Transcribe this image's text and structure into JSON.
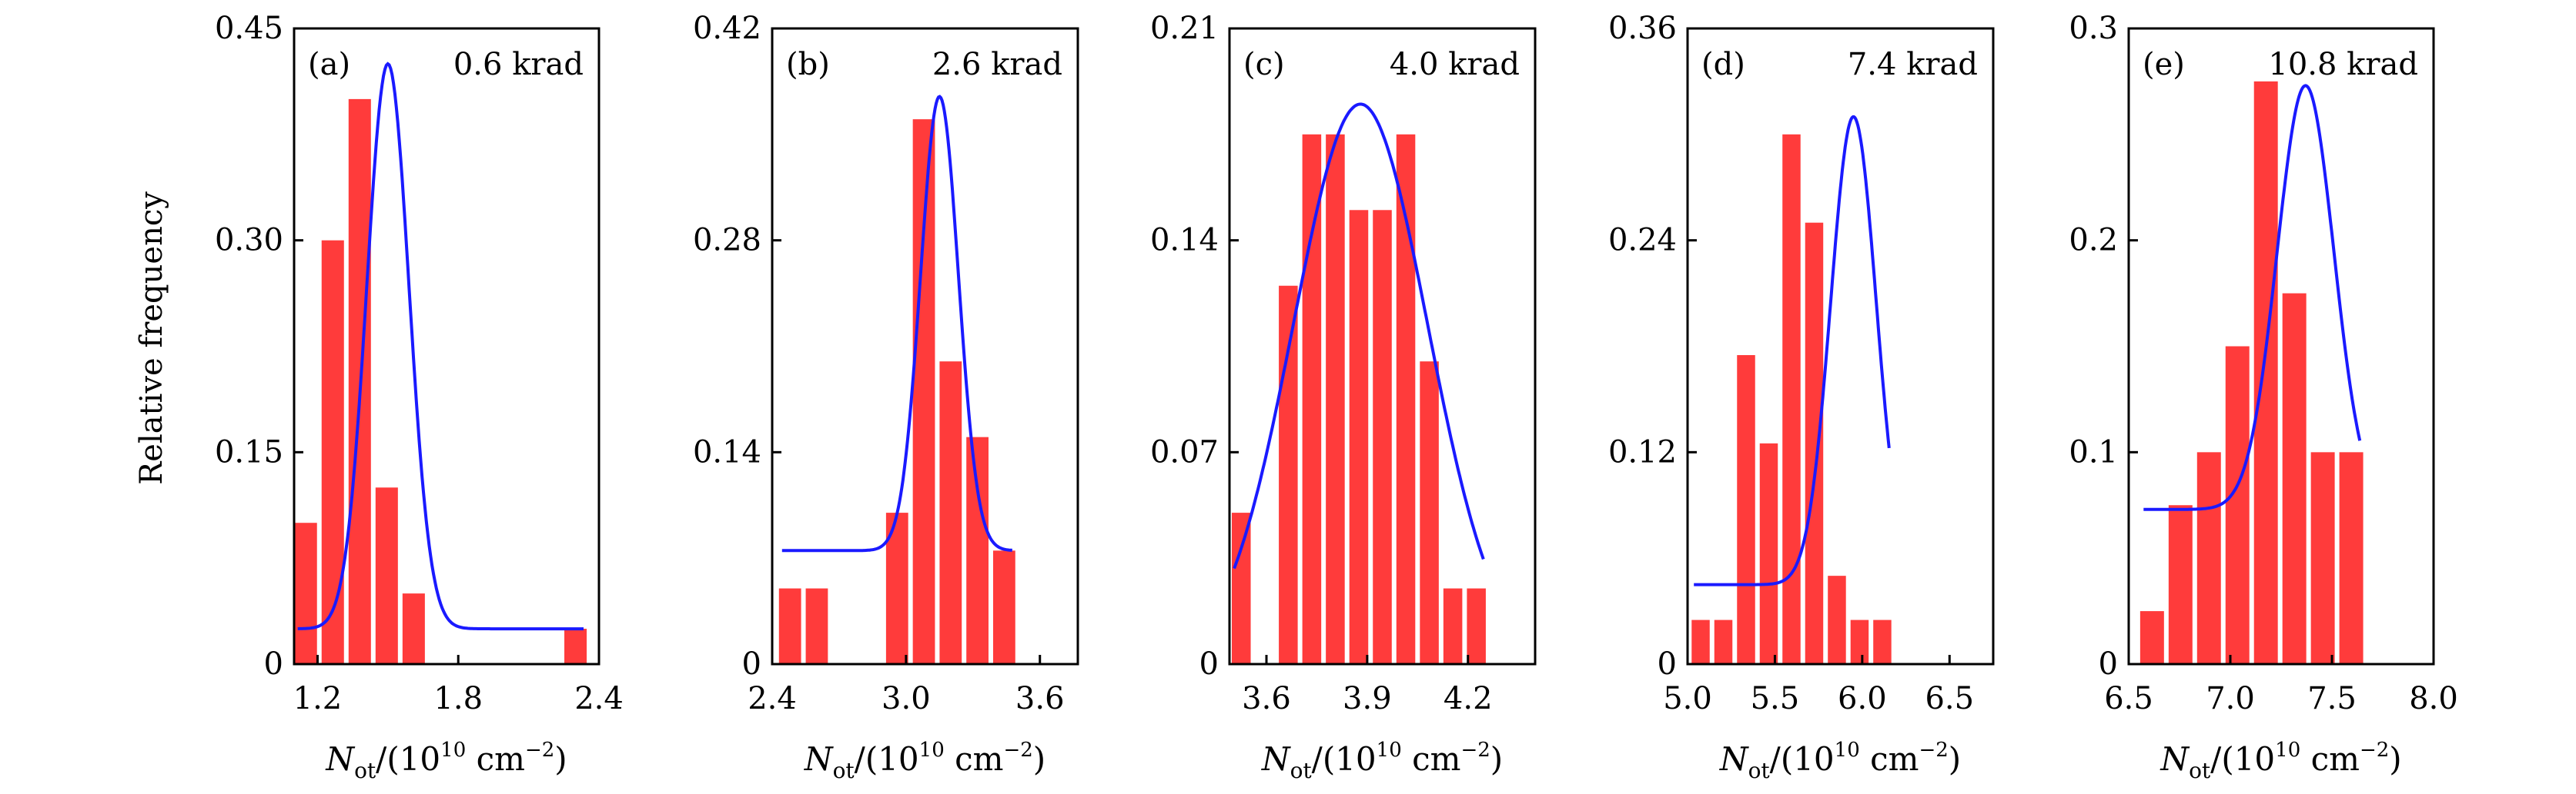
{
  "figure": {
    "y_axis_label": "Relative frequency",
    "x_axis_label": {
      "var": "N",
      "sub": "ot",
      "pre": "/(10",
      "exp10": "10",
      "unit": " cm",
      "exp_unit": "−2",
      "post": ")"
    }
  },
  "chart_data": [
    {
      "type": "bar",
      "panel": "(a)",
      "dose": "0.6 krad",
      "xlim": [
        1.1,
        2.4
      ],
      "ylim": [
        0,
        0.45
      ],
      "xticks": [
        1.2,
        1.8,
        2.4
      ],
      "xtick_labels": [
        "1.2",
        "1.8",
        "2.4"
      ],
      "yticks": [
        0,
        0.15,
        0.3,
        0.45
      ],
      "ytick_labels": [
        "0",
        "0.15",
        "0.30",
        "0.45"
      ],
      "bin_width": 0.115,
      "bins": [
        1.15,
        1.265,
        1.38,
        1.495,
        1.61,
        1.725,
        1.84,
        1.955,
        2.07,
        2.185,
        2.3
      ],
      "values": [
        0.1,
        0.3,
        0.4,
        0.125,
        0.05,
        0,
        0,
        0,
        0,
        0,
        0.025
      ],
      "fit": {
        "mu": 1.5,
        "sigma": 0.09,
        "amp": 0.4,
        "base": 0.025
      }
    },
    {
      "type": "bar",
      "panel": "(b)",
      "dose": "2.6 krad",
      "xlim": [
        2.4,
        3.77
      ],
      "ylim": [
        0,
        0.42
      ],
      "xticks": [
        2.4,
        3.0,
        3.6
      ],
      "xtick_labels": [
        "2.4",
        "3.0",
        "3.6"
      ],
      "yticks": [
        0,
        0.14,
        0.28,
        0.42
      ],
      "ytick_labels": [
        "0",
        "0.14",
        "0.28",
        "0.42"
      ],
      "bin_width": 0.12,
      "bins": [
        2.48,
        2.6,
        2.72,
        2.84,
        2.96,
        3.08,
        3.2,
        3.32,
        3.44,
        3.56,
        3.68
      ],
      "values": [
        0.05,
        0.05,
        0,
        0,
        0.1,
        0.36,
        0.2,
        0.15,
        0.075,
        0,
        0
      ],
      "fit": {
        "mu": 3.15,
        "sigma": 0.085,
        "amp": 0.3,
        "base": 0.075
      }
    },
    {
      "type": "bar",
      "panel": "(c)",
      "dose": "4.0 krad",
      "xlim": [
        3.49,
        4.4
      ],
      "ylim": [
        0,
        0.21
      ],
      "xticks": [
        3.6,
        3.9,
        4.2
      ],
      "xtick_labels": [
        "3.6",
        "3.9",
        "4.2"
      ],
      "yticks": [
        0,
        0.07,
        0.14,
        0.21
      ],
      "ytick_labels": [
        "0",
        "0.07",
        "0.14",
        "0.21"
      ],
      "bin_width": 0.07,
      "bins": [
        3.525,
        3.595,
        3.665,
        3.735,
        3.805,
        3.875,
        3.945,
        4.015,
        4.085,
        4.155,
        4.225,
        4.295,
        4.365
      ],
      "values": [
        0.05,
        0,
        0.125,
        0.175,
        0.175,
        0.15,
        0.15,
        0.175,
        0.1,
        0.025,
        0.025,
        0,
        0
      ],
      "fit": {
        "mu": 3.88,
        "sigma": 0.2,
        "amp": 0.185,
        "base": 0
      }
    },
    {
      "type": "bar",
      "panel": "(d)",
      "dose": "7.4 krad",
      "xlim": [
        5.0,
        6.75
      ],
      "ylim": [
        0,
        0.36
      ],
      "xticks": [
        5.0,
        5.5,
        6.0,
        6.5
      ],
      "xtick_labels": [
        "5.0",
        "5.5",
        "6.0",
        "6.5"
      ],
      "yticks": [
        0,
        0.12,
        0.24,
        0.36
      ],
      "ytick_labels": [
        "0",
        "0.12",
        "0.24",
        "0.36"
      ],
      "bin_width": 0.13,
      "bins": [
        5.075,
        5.205,
        5.335,
        5.465,
        5.595,
        5.725,
        5.855,
        5.985,
        6.115,
        6.245,
        6.375,
        6.505,
        6.635
      ],
      "values": [
        0.025,
        0.025,
        0.175,
        0.125,
        0.3,
        0.25,
        0.05,
        0.025,
        0.025,
        0,
        0,
        0,
        0
      ],
      "fit": {
        "mu": 5.95,
        "sigma": 0.13,
        "amp": 0.265,
        "base": 0.045
      }
    },
    {
      "type": "bar",
      "panel": "(e)",
      "dose": "10.8 krad",
      "xlim": [
        6.5,
        8.0
      ],
      "ylim": [
        0,
        0.3
      ],
      "xticks": [
        6.5,
        7.0,
        7.5,
        8.0
      ],
      "xtick_labels": [
        "6.5",
        "7.0",
        "7.5",
        "8.0"
      ],
      "yticks": [
        0,
        0.1,
        0.2,
        0.3
      ],
      "ytick_labels": [
        "0",
        "0.1",
        "0.2",
        "0.3"
      ],
      "bin_width": 0.14,
      "bins": [
        6.615,
        6.755,
        6.895,
        7.035,
        7.175,
        7.315,
        7.455,
        7.595,
        7.735,
        7.875
      ],
      "values": [
        0.025,
        0.075,
        0.1,
        0.15,
        0.275,
        0.175,
        0.1,
        0.1,
        0,
        0
      ],
      "fit": {
        "mu": 7.37,
        "sigma": 0.14,
        "amp": 0.2,
        "base": 0.073
      }
    }
  ]
}
